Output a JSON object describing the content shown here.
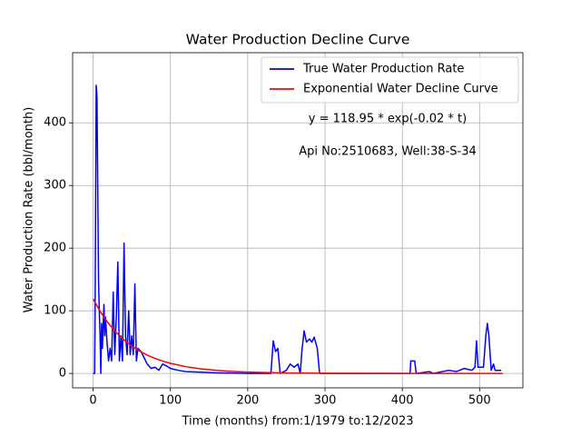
{
  "chart_data": {
    "type": "line",
    "title": "Water Production Decline Curve",
    "xlabel": "Time (months) from:1/1979 to:12/2023",
    "ylabel": "Water Production Rate (bbl/month)",
    "annotations": [
      "y = 118.95 * exp(-0.02 * t)",
      "Api No:2510683, Well:38-S-34"
    ],
    "xlim": [
      -26.5,
      556
    ],
    "ylim": [
      -23,
      512
    ],
    "xticks": [
      0,
      100,
      200,
      300,
      400,
      500
    ],
    "yticks": [
      0,
      100,
      200,
      300,
      400
    ],
    "grid": true,
    "legend": "upper right",
    "series": [
      {
        "name": "True Water Production Rate",
        "color": "#0000ff",
        "x": [
          0,
          2,
          3,
          4,
          5,
          6,
          7,
          8,
          9,
          10,
          11,
          12,
          14,
          15,
          16,
          18,
          20,
          22,
          24,
          26,
          28,
          30,
          32,
          34,
          36,
          38,
          40,
          42,
          44,
          46,
          48,
          50,
          52,
          54,
          56,
          58,
          62,
          66,
          70,
          75,
          80,
          85,
          90,
          95,
          100,
          110,
          120,
          140,
          160,
          200,
          230,
          233,
          236,
          239,
          242,
          250,
          255,
          260,
          265,
          268,
          270,
          273,
          276,
          280,
          283,
          286,
          290,
          293,
          300,
          410,
          411,
          416,
          418,
          435,
          440,
          460,
          470,
          480,
          490,
          494,
          496,
          498,
          505,
          508,
          510,
          512,
          515,
          518,
          520,
          528
        ],
        "values": [
          0,
          0,
          200,
          460,
          440,
          300,
          150,
          100,
          60,
          0,
          80,
          40,
          110,
          60,
          90,
          50,
          20,
          40,
          20,
          130,
          30,
          90,
          178,
          20,
          60,
          20,
          208,
          60,
          30,
          100,
          30,
          60,
          30,
          143,
          20,
          40,
          35,
          25,
          15,
          8,
          10,
          5,
          15,
          12,
          8,
          5,
          3,
          2,
          1,
          0,
          0,
          52,
          35,
          40,
          0,
          5,
          15,
          10,
          15,
          0,
          35,
          68,
          50,
          55,
          50,
          58,
          40,
          0,
          0,
          0,
          20,
          20,
          0,
          3,
          0,
          5,
          3,
          8,
          5,
          10,
          52,
          10,
          10,
          60,
          80,
          60,
          5,
          15,
          5,
          5
        ]
      },
      {
        "name": "Exponential Water Decline Curve",
        "color": "#ff0000",
        "x": [
          0,
          10,
          20,
          30,
          40,
          50,
          60,
          70,
          80,
          90,
          100,
          120,
          140,
          160,
          180,
          200,
          250,
          300,
          400,
          530
        ],
        "values": [
          118.95,
          97.39,
          79.73,
          65.28,
          53.45,
          43.76,
          35.83,
          29.33,
          24.02,
          19.66,
          16.1,
          10.79,
          7.23,
          4.85,
          3.25,
          2.18,
          0.8,
          0.29,
          0.04,
          0.003
        ]
      }
    ]
  }
}
